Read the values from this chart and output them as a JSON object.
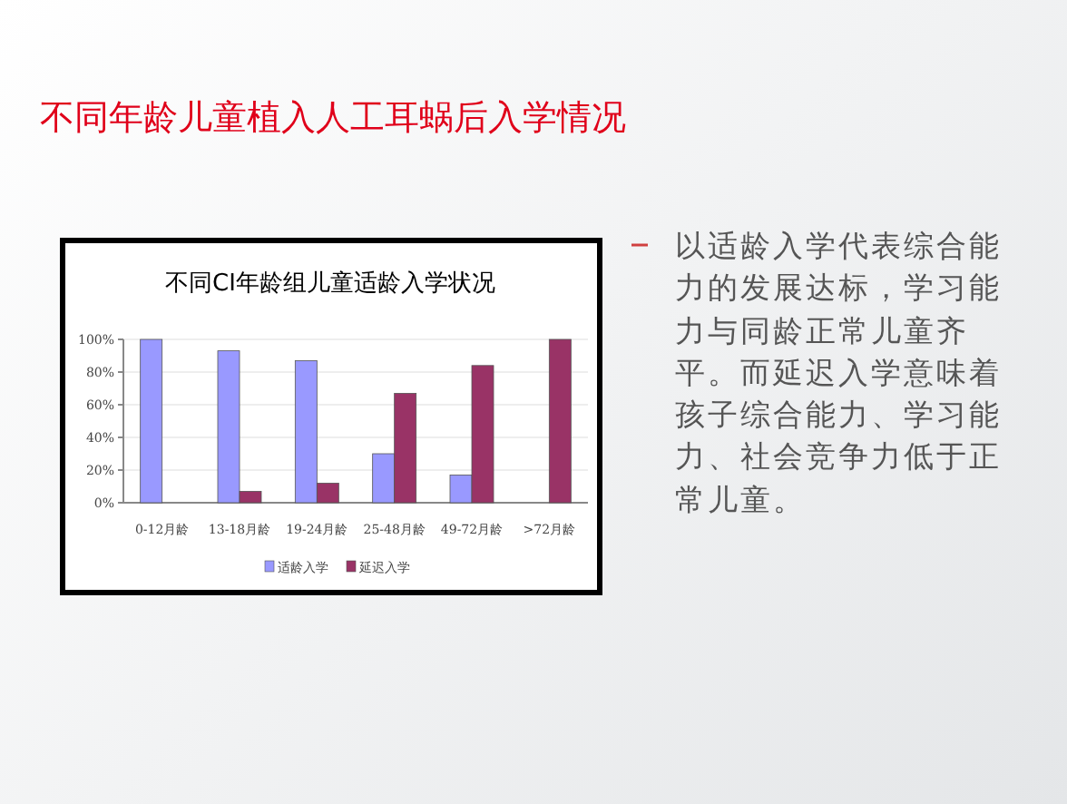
{
  "chart_data": {
    "type": "bar",
    "title": "不同年龄儿童植入人工耳蜗后入学情况",
    "subtitle": "不同CI年龄组儿童适龄入学状况",
    "categories": [
      "0-12月龄",
      "13-18月龄",
      "19-24月龄",
      "25-48月龄",
      "49-72月龄",
      ">72月龄"
    ],
    "series": [
      {
        "name": "适龄入学",
        "color": "#9999ff",
        "values": [
          100,
          93,
          87,
          30,
          17,
          0
        ]
      },
      {
        "name": "延迟入学",
        "color": "#993366",
        "values": [
          0,
          7,
          12,
          67,
          84,
          100
        ]
      }
    ],
    "ylim": [
      0,
      100
    ],
    "yticks": [
      {
        "value": 0,
        "label": "0%"
      },
      {
        "value": 20,
        "label": "20%"
      },
      {
        "value": 40,
        "label": "40%"
      },
      {
        "value": 60,
        "label": "60%"
      },
      {
        "value": 80,
        "label": "80%"
      },
      {
        "value": 100,
        "label": "100%"
      }
    ],
    "grid": "y",
    "legend": "bottom",
    "annotations": [
      "以适龄入学代表综合能力的发展达标，学习能力与同龄正常儿童齐平。而延迟入学意味着孩子综合能力、学习能力、社会竞争力低于正常儿童。"
    ]
  }
}
